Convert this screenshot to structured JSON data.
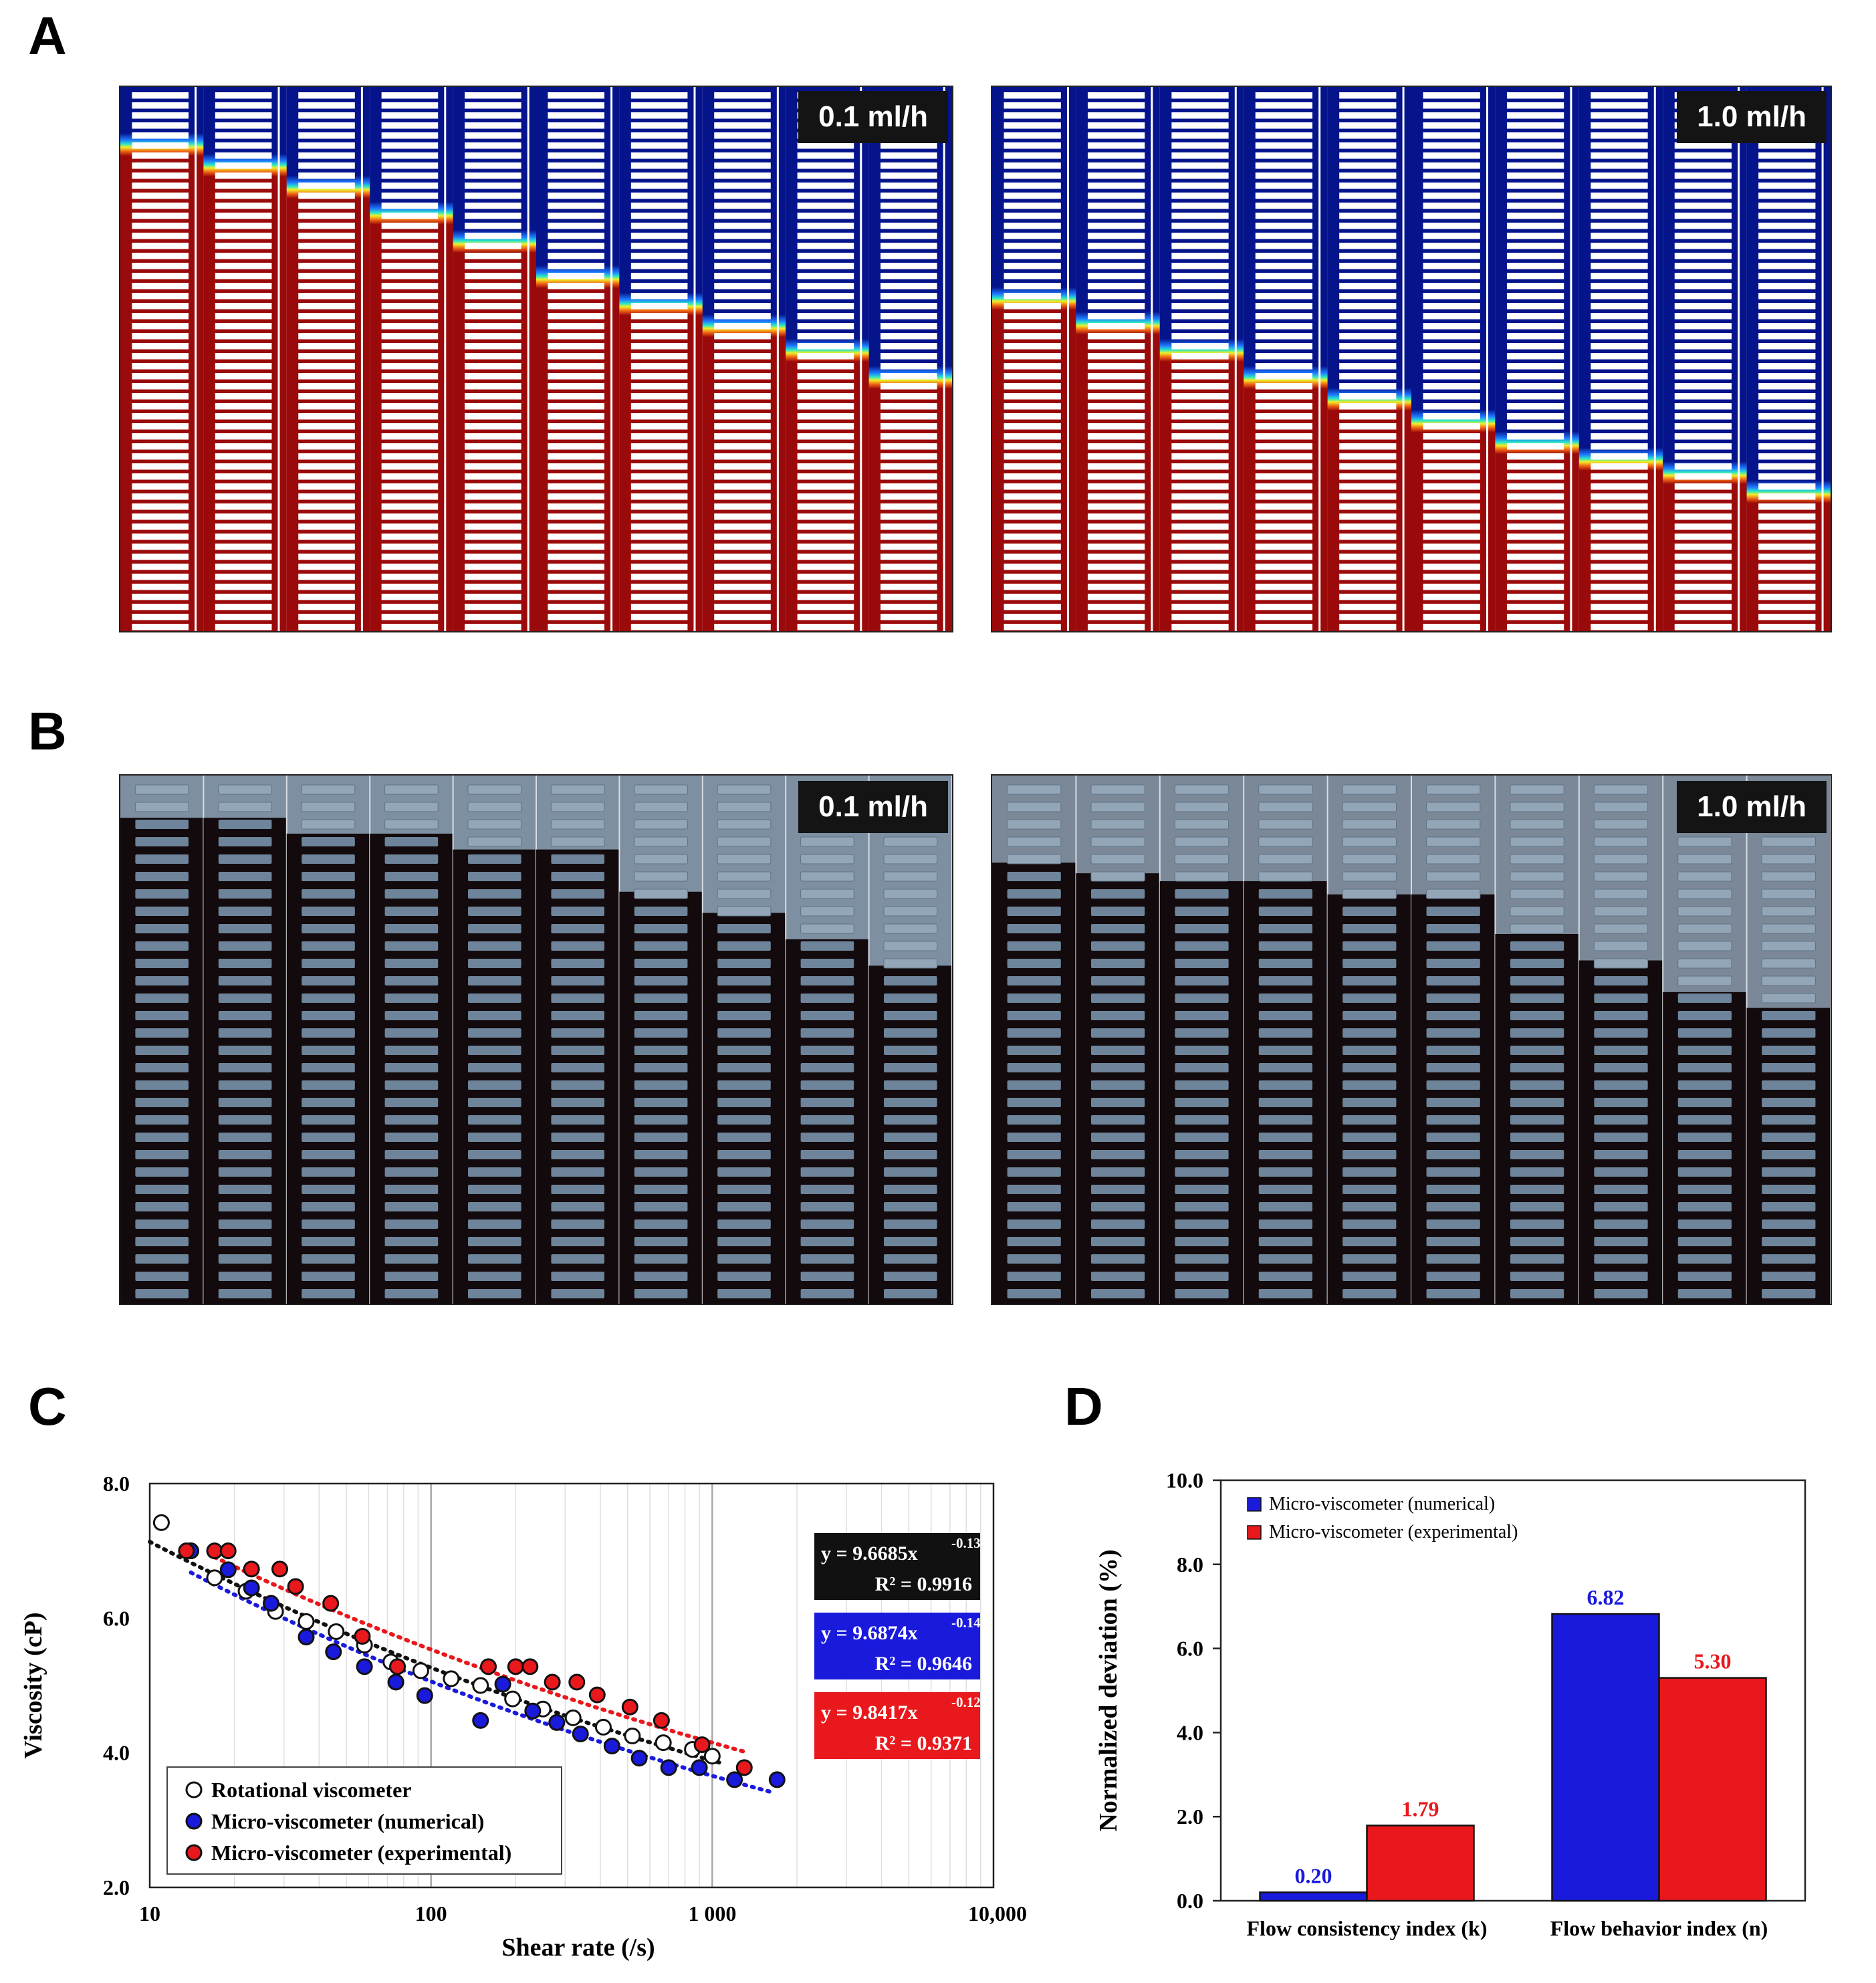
{
  "panels": {
    "a_letter": "A",
    "b_letter": "B",
    "c_letter": "C",
    "d_letter": "D"
  },
  "flow_rates": {
    "low": "0.1 ml/h",
    "high": "1.0 ml/h"
  },
  "colors": {
    "fluid_red": "#9b0a0a",
    "fluid_blue": "#06148c",
    "blood_dark": "#120a0c",
    "buffer_gray": "#7d8fa1",
    "numerical_blue": "#1a1adc",
    "experimental_red": "#e8181c"
  },
  "chart_data": [
    {
      "type": "scatter",
      "panel": "C",
      "xlabel": "Shear rate (/s)",
      "ylabel": "Viscosity (cP)",
      "x_scale": "log",
      "xlim": [
        10,
        10000
      ],
      "ylim": [
        2.0,
        8.0
      ],
      "x_ticks": [
        "10",
        "100",
        "1 000",
        "10,000"
      ],
      "y_ticks": [
        "2.0",
        "4.0",
        "6.0",
        "8.0"
      ],
      "grid": true,
      "legend_position": "bottom-left",
      "series": [
        {
          "name": "Rotational viscometer",
          "fill": "#ffffff",
          "points": [
            [
              11,
              7.42
            ],
            [
              14,
              7.0
            ],
            [
              17,
              6.6
            ],
            [
              22,
              6.4
            ],
            [
              28,
              6.1
            ],
            [
              36,
              5.95
            ],
            [
              46,
              5.8
            ],
            [
              58,
              5.6
            ],
            [
              72,
              5.35
            ],
            [
              92,
              5.22
            ],
            [
              118,
              5.1
            ],
            [
              150,
              5.0
            ],
            [
              195,
              4.8
            ],
            [
              250,
              4.65
            ],
            [
              320,
              4.52
            ],
            [
              410,
              4.38
            ],
            [
              520,
              4.25
            ],
            [
              670,
              4.15
            ],
            [
              850,
              4.05
            ],
            [
              1000,
              3.95
            ]
          ],
          "fit": {
            "x0": 10,
            "x1": 1100,
            "equation": "y = 9.6685x",
            "exponent": "-0.132",
            "r2": "R² = 0.9916",
            "color": "#111111",
            "intercept": 9.6685,
            "power": -0.132
          }
        },
        {
          "name": "Micro-viscometer (numerical)",
          "fill": "#1a1adc",
          "points": [
            [
              14,
              7.0
            ],
            [
              19,
              6.72
            ],
            [
              23,
              6.45
            ],
            [
              27,
              6.22
            ],
            [
              36,
              5.72
            ],
            [
              45,
              5.5
            ],
            [
              58,
              5.28
            ],
            [
              75,
              5.05
            ],
            [
              95,
              4.85
            ],
            [
              150,
              4.48
            ],
            [
              180,
              5.02
            ],
            [
              230,
              4.62
            ],
            [
              280,
              4.45
            ],
            [
              340,
              4.28
            ],
            [
              440,
              4.1
            ],
            [
              550,
              3.92
            ],
            [
              700,
              3.78
            ],
            [
              900,
              3.78
            ],
            [
              1200,
              3.6
            ],
            [
              1700,
              3.6
            ]
          ],
          "fit": {
            "x0": 14,
            "x1": 1650,
            "equation": "y = 9.6874x",
            "exponent": "-0.141",
            "r2": "R² = 0.9646",
            "color": "#1a1adc",
            "intercept": 9.6874,
            "power": -0.141
          }
        },
        {
          "name": "Micro-viscometer (experimental)",
          "fill": "#e8181c",
          "points": [
            [
              13.5,
              7.0
            ],
            [
              17,
              7.0
            ],
            [
              19,
              7.0
            ],
            [
              23,
              6.73
            ],
            [
              29,
              6.73
            ],
            [
              33,
              6.47
            ],
            [
              44,
              6.22
            ],
            [
              57,
              5.73
            ],
            [
              76,
              5.28
            ],
            [
              160,
              5.28
            ],
            [
              200,
              5.28
            ],
            [
              225,
              5.28
            ],
            [
              270,
              5.05
            ],
            [
              330,
              5.05
            ],
            [
              390,
              4.86
            ],
            [
              510,
              4.68
            ],
            [
              660,
              4.48
            ],
            [
              920,
              4.12
            ],
            [
              1300,
              3.78
            ]
          ],
          "fit": {
            "x0": 17,
            "x1": 1300,
            "equation": "y = 9.8417x",
            "exponent": "-0.125",
            "r2": "R² = 0.9371",
            "color": "#e8181c",
            "intercept": 9.8417,
            "power": -0.125
          }
        }
      ]
    },
    {
      "type": "bar",
      "panel": "D",
      "ylabel": "Normalized deviation (%)",
      "ylim": [
        0.0,
        10.0
      ],
      "y_ticks": [
        "0.0",
        "2.0",
        "4.0",
        "6.0",
        "8.0",
        "10.0"
      ],
      "categories": [
        "Flow consistency index (k)",
        "Flow behavior index (n)"
      ],
      "legend_position": "top-left",
      "series": [
        {
          "name": "Micro-viscometer (numerical)",
          "color": "#1a1adc",
          "values": [
            0.2,
            6.82
          ],
          "labels": [
            "0.20",
            "6.82"
          ]
        },
        {
          "name": "Micro-viscometer (experimental)",
          "color": "#e8181c",
          "values": [
            1.79,
            5.3
          ],
          "labels": [
            "1.79",
            "5.30"
          ]
        }
      ]
    }
  ]
}
